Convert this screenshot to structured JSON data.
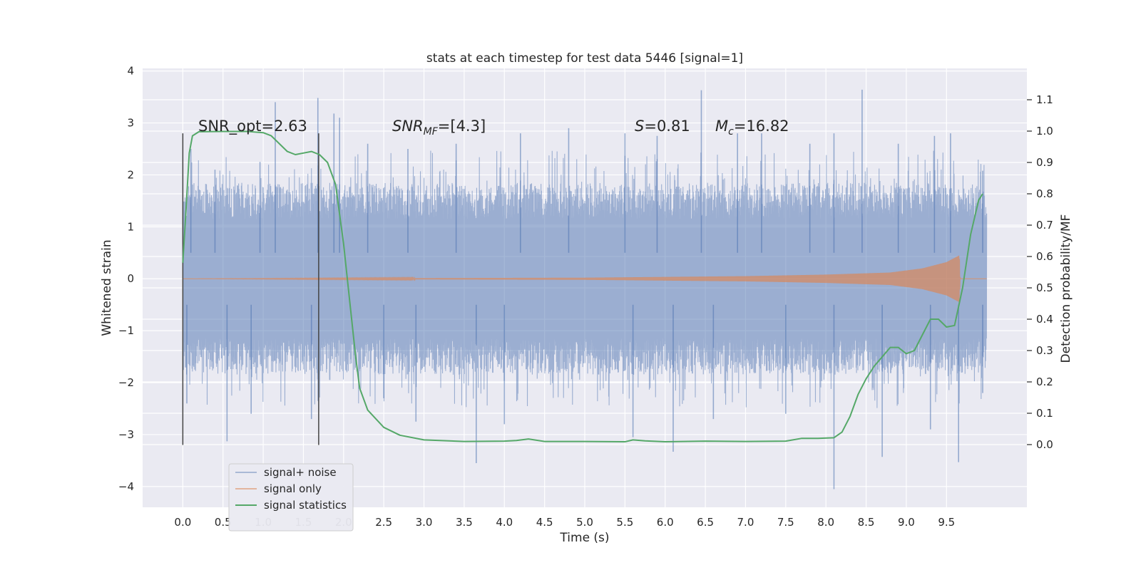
{
  "chart_data": {
    "type": "line",
    "title": "stats at each timestep for test data 5446 [signal=1]",
    "xlabel": "Time (s)",
    "ylabel": "Whitened strain",
    "ylabel_right": "Detection probability/MF",
    "xlim": [
      -0.5,
      10.5
    ],
    "ylim": [
      -4.4,
      4.05
    ],
    "ylim_right": [
      -0.2,
      1.2
    ],
    "x_ticks": [
      0.0,
      0.5,
      1.0,
      1.5,
      2.0,
      2.5,
      3.0,
      3.5,
      4.0,
      4.5,
      5.0,
      5.5,
      6.0,
      6.5,
      7.0,
      7.5,
      8.0,
      8.5,
      9.0,
      9.5
    ],
    "x_tick_labels": [
      "0.0",
      "0.5",
      "1.0",
      "1.5",
      "2.0",
      "2.5",
      "3.0",
      "3.5",
      "4.0",
      "4.5",
      "5.0",
      "5.5",
      "6.0",
      "6.5",
      "7.0",
      "7.5",
      "8.0",
      "8.5",
      "9.0",
      "9.5"
    ],
    "y_ticks": [
      -4,
      -3,
      -2,
      -1,
      0,
      1,
      2,
      3,
      4
    ],
    "y_tick_labels": [
      "−4",
      "−3",
      "−2",
      "−1",
      "0",
      "1",
      "2",
      "3",
      "4"
    ],
    "y_right_ticks": [
      0.0,
      0.1,
      0.2,
      0.3,
      0.4,
      0.5,
      0.6,
      0.7,
      0.8,
      0.9,
      1.0,
      1.1
    ],
    "y_right_tick_labels": [
      "0.0",
      "0.1",
      "0.2",
      "0.3",
      "0.4",
      "0.5",
      "0.6",
      "0.7",
      "0.8",
      "0.9",
      "1.0",
      "1.1"
    ],
    "grid": true,
    "legend_position": "lower-left",
    "colors": {
      "background": "#eaeaf2",
      "grid": "#ffffff",
      "noise": "#4c72b0",
      "signal": "#dd8452",
      "stats": "#55a868",
      "markers": "#444444"
    },
    "annotations": {
      "snr_opt": "SNR_opt=2.63",
      "snr_mf_label": "SNR",
      "snr_mf_sub": "MF",
      "snr_mf_value": "=[4.3]",
      "s_label": "S",
      "s_value": "=0.81",
      "mc_label": "M",
      "mc_sub": "c",
      "mc_value": "=16.82"
    },
    "vertical_markers": [
      {
        "x": 0.0,
        "y": [
          -3.2,
          2.8
        ]
      },
      {
        "x": 1.69,
        "y": [
          -3.2,
          2.8
        ]
      }
    ],
    "series": [
      {
        "name": "signal+ noise",
        "axis": "left",
        "x_range": [
          0.0,
          10.0
        ],
        "upper_envelope_peaks": [
          [
            0.1,
            2.5
          ],
          [
            0.4,
            2.1
          ],
          [
            0.96,
            2.25
          ],
          [
            1.15,
            3.4
          ],
          [
            1.68,
            3.48
          ],
          [
            1.88,
            3.18
          ],
          [
            1.95,
            3.1
          ],
          [
            2.3,
            2.6
          ],
          [
            2.8,
            2.5
          ],
          [
            3.4,
            2.6
          ],
          [
            4.2,
            2.8
          ],
          [
            4.8,
            2.9
          ],
          [
            5.5,
            2.8
          ],
          [
            5.9,
            2.75
          ],
          [
            6.45,
            3.63
          ],
          [
            6.9,
            2.8
          ],
          [
            7.2,
            2.8
          ],
          [
            7.8,
            2.6
          ],
          [
            8.1,
            2.8
          ],
          [
            8.45,
            3.64
          ],
          [
            8.9,
            2.6
          ],
          [
            9.35,
            2.75
          ],
          [
            9.55,
            2.8
          ],
          [
            9.95,
            2.08
          ]
        ],
        "lower_envelope_peaks": [
          [
            0.05,
            -2.4
          ],
          [
            0.55,
            -3.13
          ],
          [
            0.85,
            -2.6
          ],
          [
            1.6,
            -2.7
          ],
          [
            2.5,
            -2.3
          ],
          [
            2.9,
            -2.75
          ],
          [
            3.65,
            -3.55
          ],
          [
            4.0,
            -2.8
          ],
          [
            5.6,
            -3.05
          ],
          [
            6.1,
            -3.33
          ],
          [
            6.6,
            -2.7
          ],
          [
            7.5,
            -2.6
          ],
          [
            8.1,
            -4.05
          ],
          [
            8.7,
            -3.43
          ],
          [
            9.3,
            -2.9
          ],
          [
            9.65,
            -3.53
          ],
          [
            9.95,
            -2.2
          ]
        ]
      },
      {
        "name": "signal only",
        "axis": "left",
        "x_range": [
          0.0,
          10.0
        ],
        "amplitude_envelope": [
          [
            0.0,
            0.0
          ],
          [
            5.0,
            0.02
          ],
          [
            7.0,
            0.05
          ],
          [
            8.0,
            0.08
          ],
          [
            8.8,
            0.12
          ],
          [
            9.2,
            0.2
          ],
          [
            9.5,
            0.32
          ],
          [
            9.66,
            0.45
          ],
          [
            9.67,
            0.0
          ],
          [
            10.0,
            0.0
          ]
        ]
      },
      {
        "name": "signal statistics",
        "axis": "right",
        "points": [
          [
            0.0,
            0.58
          ],
          [
            0.04,
            0.75
          ],
          [
            0.08,
            0.93
          ],
          [
            0.12,
            0.985
          ],
          [
            0.2,
            0.998
          ],
          [
            0.5,
            0.999
          ],
          [
            0.8,
            0.999
          ],
          [
            1.0,
            0.995
          ],
          [
            1.1,
            0.985
          ],
          [
            1.2,
            0.96
          ],
          [
            1.3,
            0.935
          ],
          [
            1.4,
            0.925
          ],
          [
            1.5,
            0.93
          ],
          [
            1.6,
            0.935
          ],
          [
            1.7,
            0.925
          ],
          [
            1.8,
            0.9
          ],
          [
            1.9,
            0.83
          ],
          [
            2.0,
            0.64
          ],
          [
            2.1,
            0.4
          ],
          [
            2.15,
            0.28
          ],
          [
            2.2,
            0.18
          ],
          [
            2.3,
            0.11
          ],
          [
            2.5,
            0.055
          ],
          [
            2.7,
            0.03
          ],
          [
            3.0,
            0.015
          ],
          [
            3.5,
            0.01
          ],
          [
            4.0,
            0.011
          ],
          [
            4.15,
            0.013
          ],
          [
            4.3,
            0.018
          ],
          [
            4.5,
            0.01
          ],
          [
            5.0,
            0.01
          ],
          [
            5.5,
            0.009
          ],
          [
            5.6,
            0.015
          ],
          [
            5.75,
            0.012
          ],
          [
            6.0,
            0.009
          ],
          [
            6.5,
            0.011
          ],
          [
            7.0,
            0.01
          ],
          [
            7.5,
            0.011
          ],
          [
            7.7,
            0.02
          ],
          [
            7.9,
            0.02
          ],
          [
            8.1,
            0.022
          ],
          [
            8.2,
            0.04
          ],
          [
            8.3,
            0.09
          ],
          [
            8.4,
            0.16
          ],
          [
            8.5,
            0.21
          ],
          [
            8.6,
            0.25
          ],
          [
            8.7,
            0.28
          ],
          [
            8.8,
            0.31
          ],
          [
            8.9,
            0.31
          ],
          [
            9.0,
            0.29
          ],
          [
            9.1,
            0.3
          ],
          [
            9.2,
            0.35
          ],
          [
            9.3,
            0.4
          ],
          [
            9.4,
            0.4
          ],
          [
            9.5,
            0.375
          ],
          [
            9.6,
            0.38
          ],
          [
            9.7,
            0.5
          ],
          [
            9.8,
            0.67
          ],
          [
            9.9,
            0.78
          ],
          [
            9.95,
            0.8
          ]
        ]
      }
    ]
  }
}
